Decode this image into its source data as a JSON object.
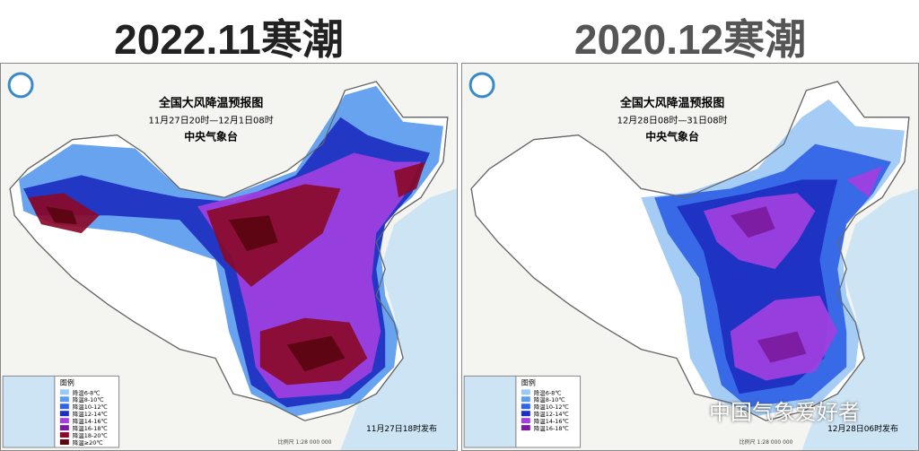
{
  "headers": [
    "2022.11寒潮",
    "2020.12寒潮"
  ],
  "panels": [
    {
      "title": "全国大风降温预报图",
      "period": "11月27日20时—12月1日08时",
      "agency": "中央气象台",
      "legend_title": "图例",
      "legend": [
        {
          "label": "降温6-8℃",
          "color": "#9cc8f4"
        },
        {
          "label": "降温8-10℃",
          "color": "#5a9bee"
        },
        {
          "label": "降温10-12℃",
          "color": "#2f62e6"
        },
        {
          "label": "降温12-14℃",
          "color": "#1c2fc0"
        },
        {
          "label": "降温14-16℃",
          "color": "#a23fe0"
        },
        {
          "label": "降温16-18℃",
          "color": "#7a1a9e"
        },
        {
          "label": "降温18-20℃",
          "color": "#8a0a2a"
        },
        {
          "label": "降温≥20℃",
          "color": "#5a0410"
        }
      ],
      "issued": "11月27日18时发布",
      "scale": "比例尺 1:28 000 000"
    },
    {
      "title": "全国大风降温预报图",
      "period": "12月28日08时—31日08时",
      "agency": "中央气象台",
      "legend_title": "图例",
      "legend": [
        {
          "label": "降温6-8℃",
          "color": "#9cc8f4"
        },
        {
          "label": "降温8-10℃",
          "color": "#5a9bee"
        },
        {
          "label": "降温10-12℃",
          "color": "#2f62e6"
        },
        {
          "label": "降温12-14℃",
          "color": "#1c2fc0"
        },
        {
          "label": "降温14-16℃",
          "color": "#a23fe0"
        },
        {
          "label": "降温16-18℃",
          "color": "#7a1a9e"
        }
      ],
      "issued": "12月28日06时发布",
      "scale": "比例尺 1:28 000 000"
    }
  ],
  "watermark": "中国气象爱好者"
}
